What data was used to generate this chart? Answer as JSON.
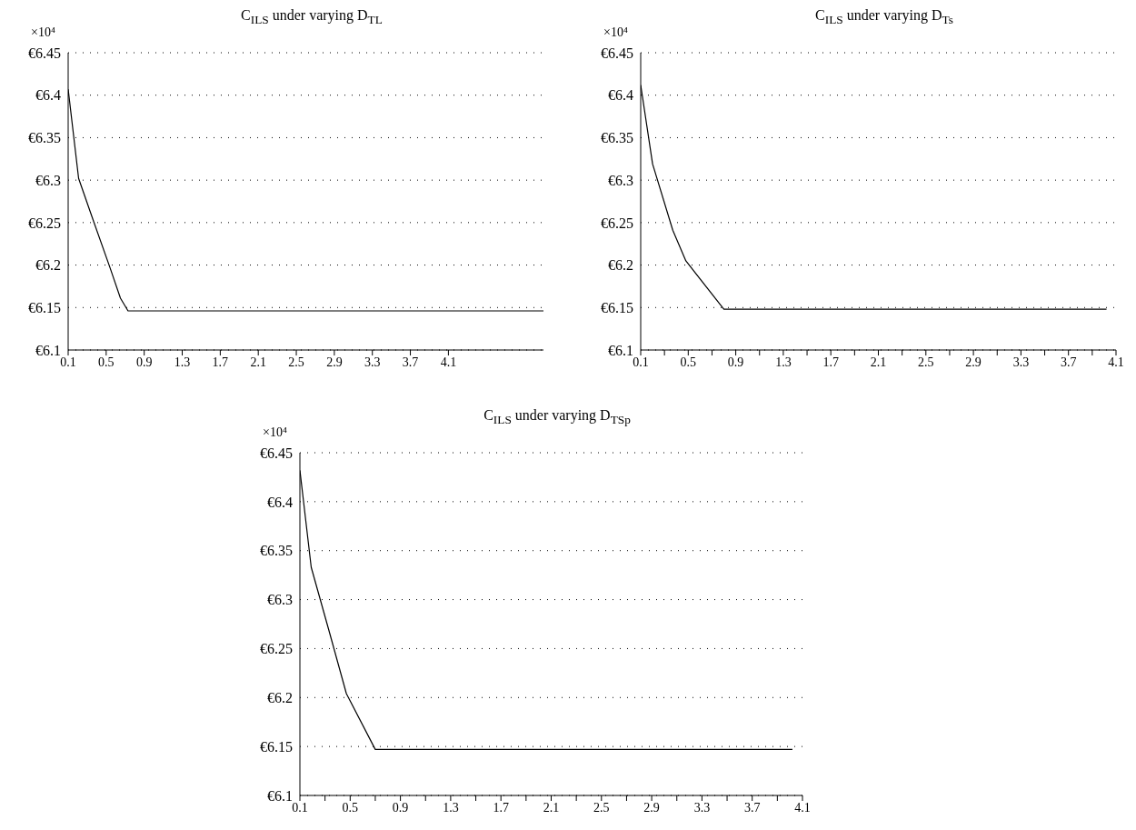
{
  "chart_data": [
    {
      "type": "line",
      "title": "C$_{ILS}$ under varying D$_{TL}$",
      "annotations": [
        "×10⁴"
      ],
      "x": [
        0.1,
        0.21,
        0.35,
        0.54,
        0.65,
        0.73,
        5.1
      ],
      "series": [
        {
          "color": "#000000",
          "values": [
            6.407,
            6.302,
            6.257,
            6.197,
            6.161,
            6.146,
            6.146
          ]
        }
      ],
      "xlim": [
        0.1,
        5.1
      ],
      "xticks": [
        0.1,
        0.5,
        0.9,
        1.3,
        1.7,
        2.1,
        2.5,
        2.9,
        3.3,
        3.7,
        4.1
      ],
      "ylim": [
        6.1,
        6.45
      ],
      "yticks": [
        {
          "value": 6.1,
          "label": "€6.1"
        },
        {
          "value": 6.15,
          "label": "€6.15"
        },
        {
          "value": 6.2,
          "label": "€6.2"
        },
        {
          "value": 6.25,
          "label": "€6.25"
        },
        {
          "value": 6.3,
          "label": "€6.3"
        },
        {
          "value": 6.35,
          "label": "€6.35"
        },
        {
          "value": 6.4,
          "label": "€6.4"
        },
        {
          "value": 6.45,
          "label": "€6.45"
        }
      ],
      "grid": "y",
      "legend": false,
      "marker": "none",
      "line_style": "solid"
    },
    {
      "type": "line",
      "title": "C$_{ILS}$ under varying D$_{Ts}$",
      "annotations": [
        "×10⁴"
      ],
      "x": [
        0.1,
        0.2,
        0.37,
        0.48,
        0.8,
        4.02
      ],
      "series": [
        {
          "color": "#000000",
          "values": [
            6.412,
            6.319,
            6.241,
            6.205,
            6.148,
            6.148
          ]
        }
      ],
      "xlim": [
        0.1,
        4.1
      ],
      "xticks": [
        0.1,
        {
          "value": 0.3,
          "label": null
        },
        0.5,
        {
          "value": 0.7,
          "label": null
        },
        0.9,
        {
          "value": 1.1,
          "label": null
        },
        1.3,
        {
          "value": 1.5,
          "label": null
        },
        1.7,
        {
          "value": 1.9,
          "label": null
        },
        2.1,
        {
          "value": 2.3,
          "label": null
        },
        2.5,
        {
          "value": 2.7,
          "label": null
        },
        2.9,
        {
          "value": 3.1,
          "label": null
        },
        3.3,
        {
          "value": 3.5,
          "label": null
        },
        3.7,
        {
          "value": 3.9,
          "label": null
        },
        4.1
      ],
      "ylim": [
        6.1,
        6.45
      ],
      "yticks": [
        {
          "value": 6.1,
          "label": "€6.1"
        },
        {
          "value": 6.15,
          "label": "€6.15"
        },
        {
          "value": 6.2,
          "label": "€6.2"
        },
        {
          "value": 6.25,
          "label": "€6.25"
        },
        {
          "value": 6.3,
          "label": "€6.3"
        },
        {
          "value": 6.35,
          "label": "€6.35"
        },
        {
          "value": 6.4,
          "label": "€6.4"
        },
        {
          "value": 6.45,
          "label": "€6.45"
        }
      ],
      "grid": "y",
      "legend": false,
      "marker": "none",
      "line_style": "solid"
    },
    {
      "type": "line",
      "title": "C$_{ILS}$ under varying D$_{TSp}$",
      "annotations": [
        "×10⁴"
      ],
      "x": [
        0.1,
        0.19,
        0.33,
        0.47,
        0.7,
        4.02
      ],
      "series": [
        {
          "color": "#000000",
          "values": [
            6.432,
            6.333,
            6.269,
            6.204,
            6.147,
            6.147
          ]
        }
      ],
      "xlim": [
        0.1,
        4.1
      ],
      "xticks": [
        0.1,
        {
          "value": 0.3,
          "label": null
        },
        0.5,
        {
          "value": 0.7,
          "label": null
        },
        0.9,
        {
          "value": 1.1,
          "label": null
        },
        1.3,
        {
          "value": 1.5,
          "label": null
        },
        1.7,
        {
          "value": 1.9,
          "label": null
        },
        2.1,
        {
          "value": 2.3,
          "label": null
        },
        2.5,
        {
          "value": 2.7,
          "label": null
        },
        2.9,
        {
          "value": 3.1,
          "label": null
        },
        3.3,
        {
          "value": 3.5,
          "label": null
        },
        3.7,
        {
          "value": 3.9,
          "label": null
        },
        4.1
      ],
      "ylim": [
        6.1,
        6.45
      ],
      "yticks": [
        {
          "value": 6.1,
          "label": "€6.1"
        },
        {
          "value": 6.15,
          "label": "€6.15"
        },
        {
          "value": 6.2,
          "label": "€6.2"
        },
        {
          "value": 6.25,
          "label": "€6.25"
        },
        {
          "value": 6.3,
          "label": "€6.3"
        },
        {
          "value": 6.35,
          "label": "€6.35"
        },
        {
          "value": 6.4,
          "label": "€6.4"
        },
        {
          "value": 6.45,
          "label": "€6.45"
        }
      ],
      "grid": "y",
      "legend": false,
      "marker": "none",
      "line_style": "solid"
    }
  ]
}
